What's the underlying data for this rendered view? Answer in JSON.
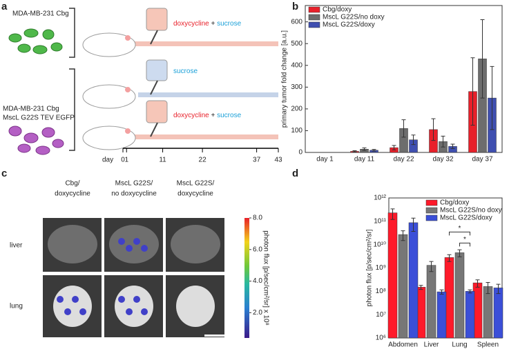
{
  "panel_labels": [
    "a",
    "b",
    "c",
    "d"
  ],
  "panel_a": {
    "cell_line_1": "MDA-MB-231 Cbg",
    "cell_line_2": [
      "MDA-MB-231 Cbg",
      "MscL G22S TEV EGFP"
    ],
    "groups": [
      {
        "drug": "doxycycline",
        "plus": "+",
        "sugar": "sucrose"
      },
      {
        "sugar": "sucrose"
      },
      {
        "drug": "doxycycline",
        "plus": "+",
        "sugar": "sucrose"
      }
    ],
    "timeline": {
      "label": "day",
      "lim": [
        0,
        43
      ],
      "ticks": [
        0,
        1,
        11,
        22,
        37,
        43
      ]
    }
  },
  "panel_c": {
    "columns": [
      [
        "Cbg/",
        "doxycycline"
      ],
      [
        "MscL G22S/",
        "no doxycycline"
      ],
      [
        "MscL G22S/",
        "doxycycline"
      ]
    ],
    "rows": [
      "liver",
      "lung"
    ],
    "colorbar": {
      "label": "photon flux [p/sec/cm²/sr] x 10⁸",
      "lim": [
        0.4,
        8
      ],
      "ticks": [
        {
          "value": 8,
          "label": "8.0"
        },
        {
          "value": 6,
          "label": "6.0"
        },
        {
          "value": 4,
          "label": "4.0"
        },
        {
          "value": 2,
          "label": "2.0"
        }
      ]
    }
  },
  "chart_data": [
    {
      "type": "bar",
      "ylabel": "primary tumor fold change [a.u.]",
      "categories": [
        "day 1",
        "day 11",
        "day 22",
        "day 32",
        "day 37"
      ],
      "ylim": [
        0,
        675
      ],
      "yticks": [
        0,
        100,
        200,
        300,
        400,
        500,
        600
      ],
      "legend": "top-left",
      "series": [
        {
          "name": "Cbg/doxy",
          "color": "#e8202a",
          "values": [
            0,
            5,
            22,
            105,
            280
          ],
          "errors": [
            0,
            3,
            10,
            50,
            155
          ]
        },
        {
          "name": "MscL G22S/no doxy",
          "color": "#6d6d6d",
          "values": [
            0,
            15,
            110,
            50,
            430
          ],
          "errors": [
            0,
            6,
            40,
            25,
            180
          ]
        },
        {
          "name": "MscL G22S/doxy",
          "color": "#3f4fb0",
          "values": [
            0,
            10,
            58,
            28,
            250
          ],
          "errors": [
            0,
            4,
            22,
            10,
            145
          ]
        }
      ]
    },
    {
      "type": "bar",
      "log_scale": true,
      "ylabel": "photon flux [p/sec/cm²/sr]",
      "categories": [
        "Abdomen",
        "Liver",
        "Lung",
        "Spleen"
      ],
      "ylim": [
        1000000.0,
        1000000000000.0
      ],
      "yticks": [
        {
          "value": 1000000.0,
          "label": "10⁶"
        },
        {
          "value": 10000000.0,
          "label": "10⁷"
        },
        {
          "value": 100000000.0,
          "label": "10⁸"
        },
        {
          "value": 1000000000.0,
          "label": "10⁹"
        },
        {
          "value": 10000000000.0,
          "label": "10¹⁰"
        },
        {
          "value": 100000000000.0,
          "label": "10¹¹"
        },
        {
          "value": 1000000000000.0,
          "label": "10¹²"
        }
      ],
      "legend": "top-right",
      "annotations": [
        "*",
        "*"
      ],
      "series": [
        {
          "name": "Cbg/doxy",
          "color": "#fe1a2a",
          "values": [
            230000000000.0,
            150000000.0,
            2800000000.0,
            230000000.0
          ],
          "errors": [
            110000000000.0,
            30000000.0,
            900000000.0,
            80000000.0
          ]
        },
        {
          "name": "MscL G22S/no doxy",
          "color": "#777777",
          "values": [
            27000000000.0,
            1300000000.0,
            4500000000.0,
            160000000.0
          ],
          "errors": [
            12000000000.0,
            600000000.0,
            1500000000.0,
            80000000.0
          ]
        },
        {
          "name": "MscL G22S/doxy",
          "color": "#3b4fd8",
          "values": [
            87000000000.0,
            95000000.0,
            100000000.0,
            140000000.0
          ],
          "errors": [
            50000000000.0,
            20000000.0,
            15000000.0,
            60000000.0
          ]
        }
      ]
    }
  ]
}
